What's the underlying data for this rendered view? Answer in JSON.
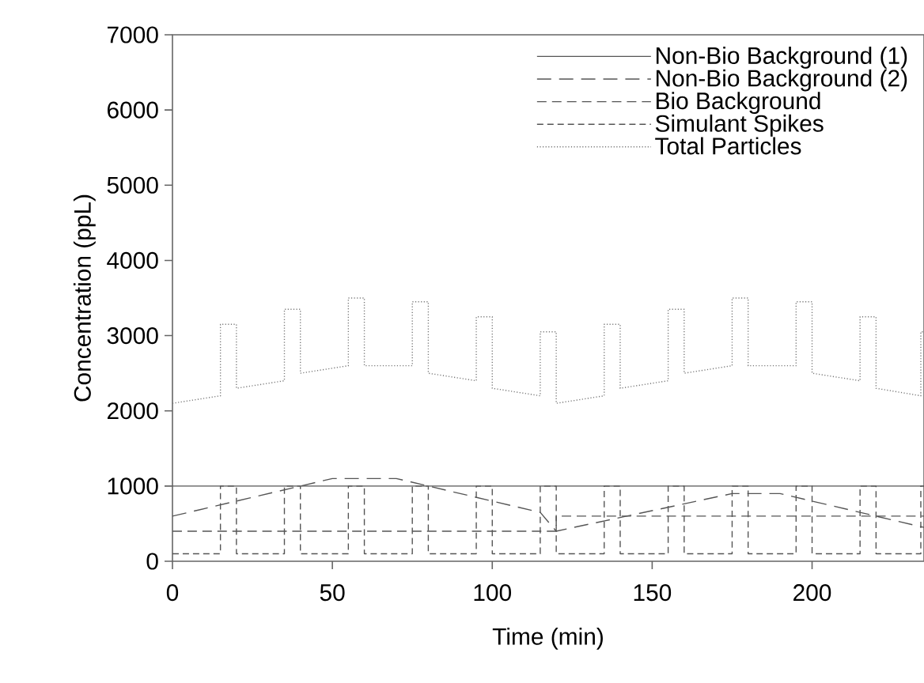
{
  "chart_data": {
    "type": "line",
    "xlabel": "Time (min)",
    "ylabel": "Concentration (ppL)",
    "xlim": [
      0,
      235
    ],
    "ylim": [
      0,
      7000
    ],
    "xticks": [
      0,
      50,
      100,
      150,
      200
    ],
    "yticks": [
      0,
      1000,
      2000,
      3000,
      4000,
      5000,
      6000,
      7000
    ],
    "legend": "top right",
    "grid": false,
    "marker": "none",
    "series": [
      {
        "name": "Non-Bio Background (1)",
        "color": "#555555",
        "line_style": "solid",
        "x": [
          0,
          235
        ],
        "values": [
          1000,
          1000
        ]
      },
      {
        "name": "Non-Bio Background (2)",
        "color": "#555555",
        "line_style": "dashed",
        "x": [
          0,
          50,
          70,
          115,
          120,
          175,
          190,
          235
        ],
        "values": [
          600,
          1100,
          1100,
          650,
          400,
          900,
          900,
          450
        ]
      },
      {
        "name": "Bio Background",
        "color": "#555555",
        "line_style": "dashed",
        "x": [
          0,
          120,
          120,
          235
        ],
        "values": [
          400,
          400,
          600,
          600
        ]
      },
      {
        "name": "Simulant Spikes",
        "color": "#555555",
        "line_style": "dashed",
        "x": [
          0,
          15,
          15,
          20,
          20,
          35,
          35,
          40,
          40,
          55,
          55,
          60,
          60,
          75,
          75,
          80,
          80,
          95,
          95,
          100,
          100,
          115,
          115,
          120,
          120,
          135,
          135,
          140,
          140,
          155,
          155,
          160,
          160,
          175,
          175,
          180,
          180,
          195,
          195,
          200,
          200,
          215,
          215,
          220,
          220,
          234,
          234,
          235
        ],
        "values": [
          100,
          100,
          1000,
          1000,
          100,
          100,
          1000,
          1000,
          100,
          100,
          1000,
          1000,
          100,
          100,
          1000,
          1000,
          100,
          100,
          1000,
          1000,
          100,
          100,
          1000,
          1000,
          100,
          100,
          1000,
          1000,
          100,
          100,
          1000,
          1000,
          100,
          100,
          1000,
          1000,
          100,
          100,
          1000,
          1000,
          100,
          100,
          1000,
          1000,
          100,
          100,
          1000,
          1000
        ]
      },
      {
        "name": "Total Particles",
        "color": "#777777",
        "line_style": "dotted",
        "x": [
          0,
          15,
          15,
          20,
          20,
          35,
          35,
          40,
          40,
          55,
          55,
          60,
          60,
          75,
          75,
          80,
          80,
          95,
          95,
          100,
          100,
          115,
          115,
          120,
          120,
          135,
          135,
          140,
          140,
          155,
          155,
          160,
          160,
          175,
          175,
          180,
          180,
          195,
          195,
          200,
          200,
          215,
          215,
          220,
          220,
          234,
          234,
          235
        ],
        "values": [
          2100,
          2200,
          3150,
          3150,
          2300,
          2400,
          3350,
          3350,
          2500,
          2600,
          3500,
          3500,
          2600,
          2600,
          3450,
          3450,
          2500,
          2400,
          3250,
          3250,
          2300,
          2200,
          3050,
          3050,
          2100,
          2200,
          3150,
          3150,
          2300,
          2400,
          3350,
          3350,
          2500,
          2600,
          3500,
          3500,
          2600,
          2600,
          3450,
          3450,
          2500,
          2400,
          3250,
          3250,
          2300,
          2200,
          3050,
          3050
        ]
      }
    ]
  }
}
